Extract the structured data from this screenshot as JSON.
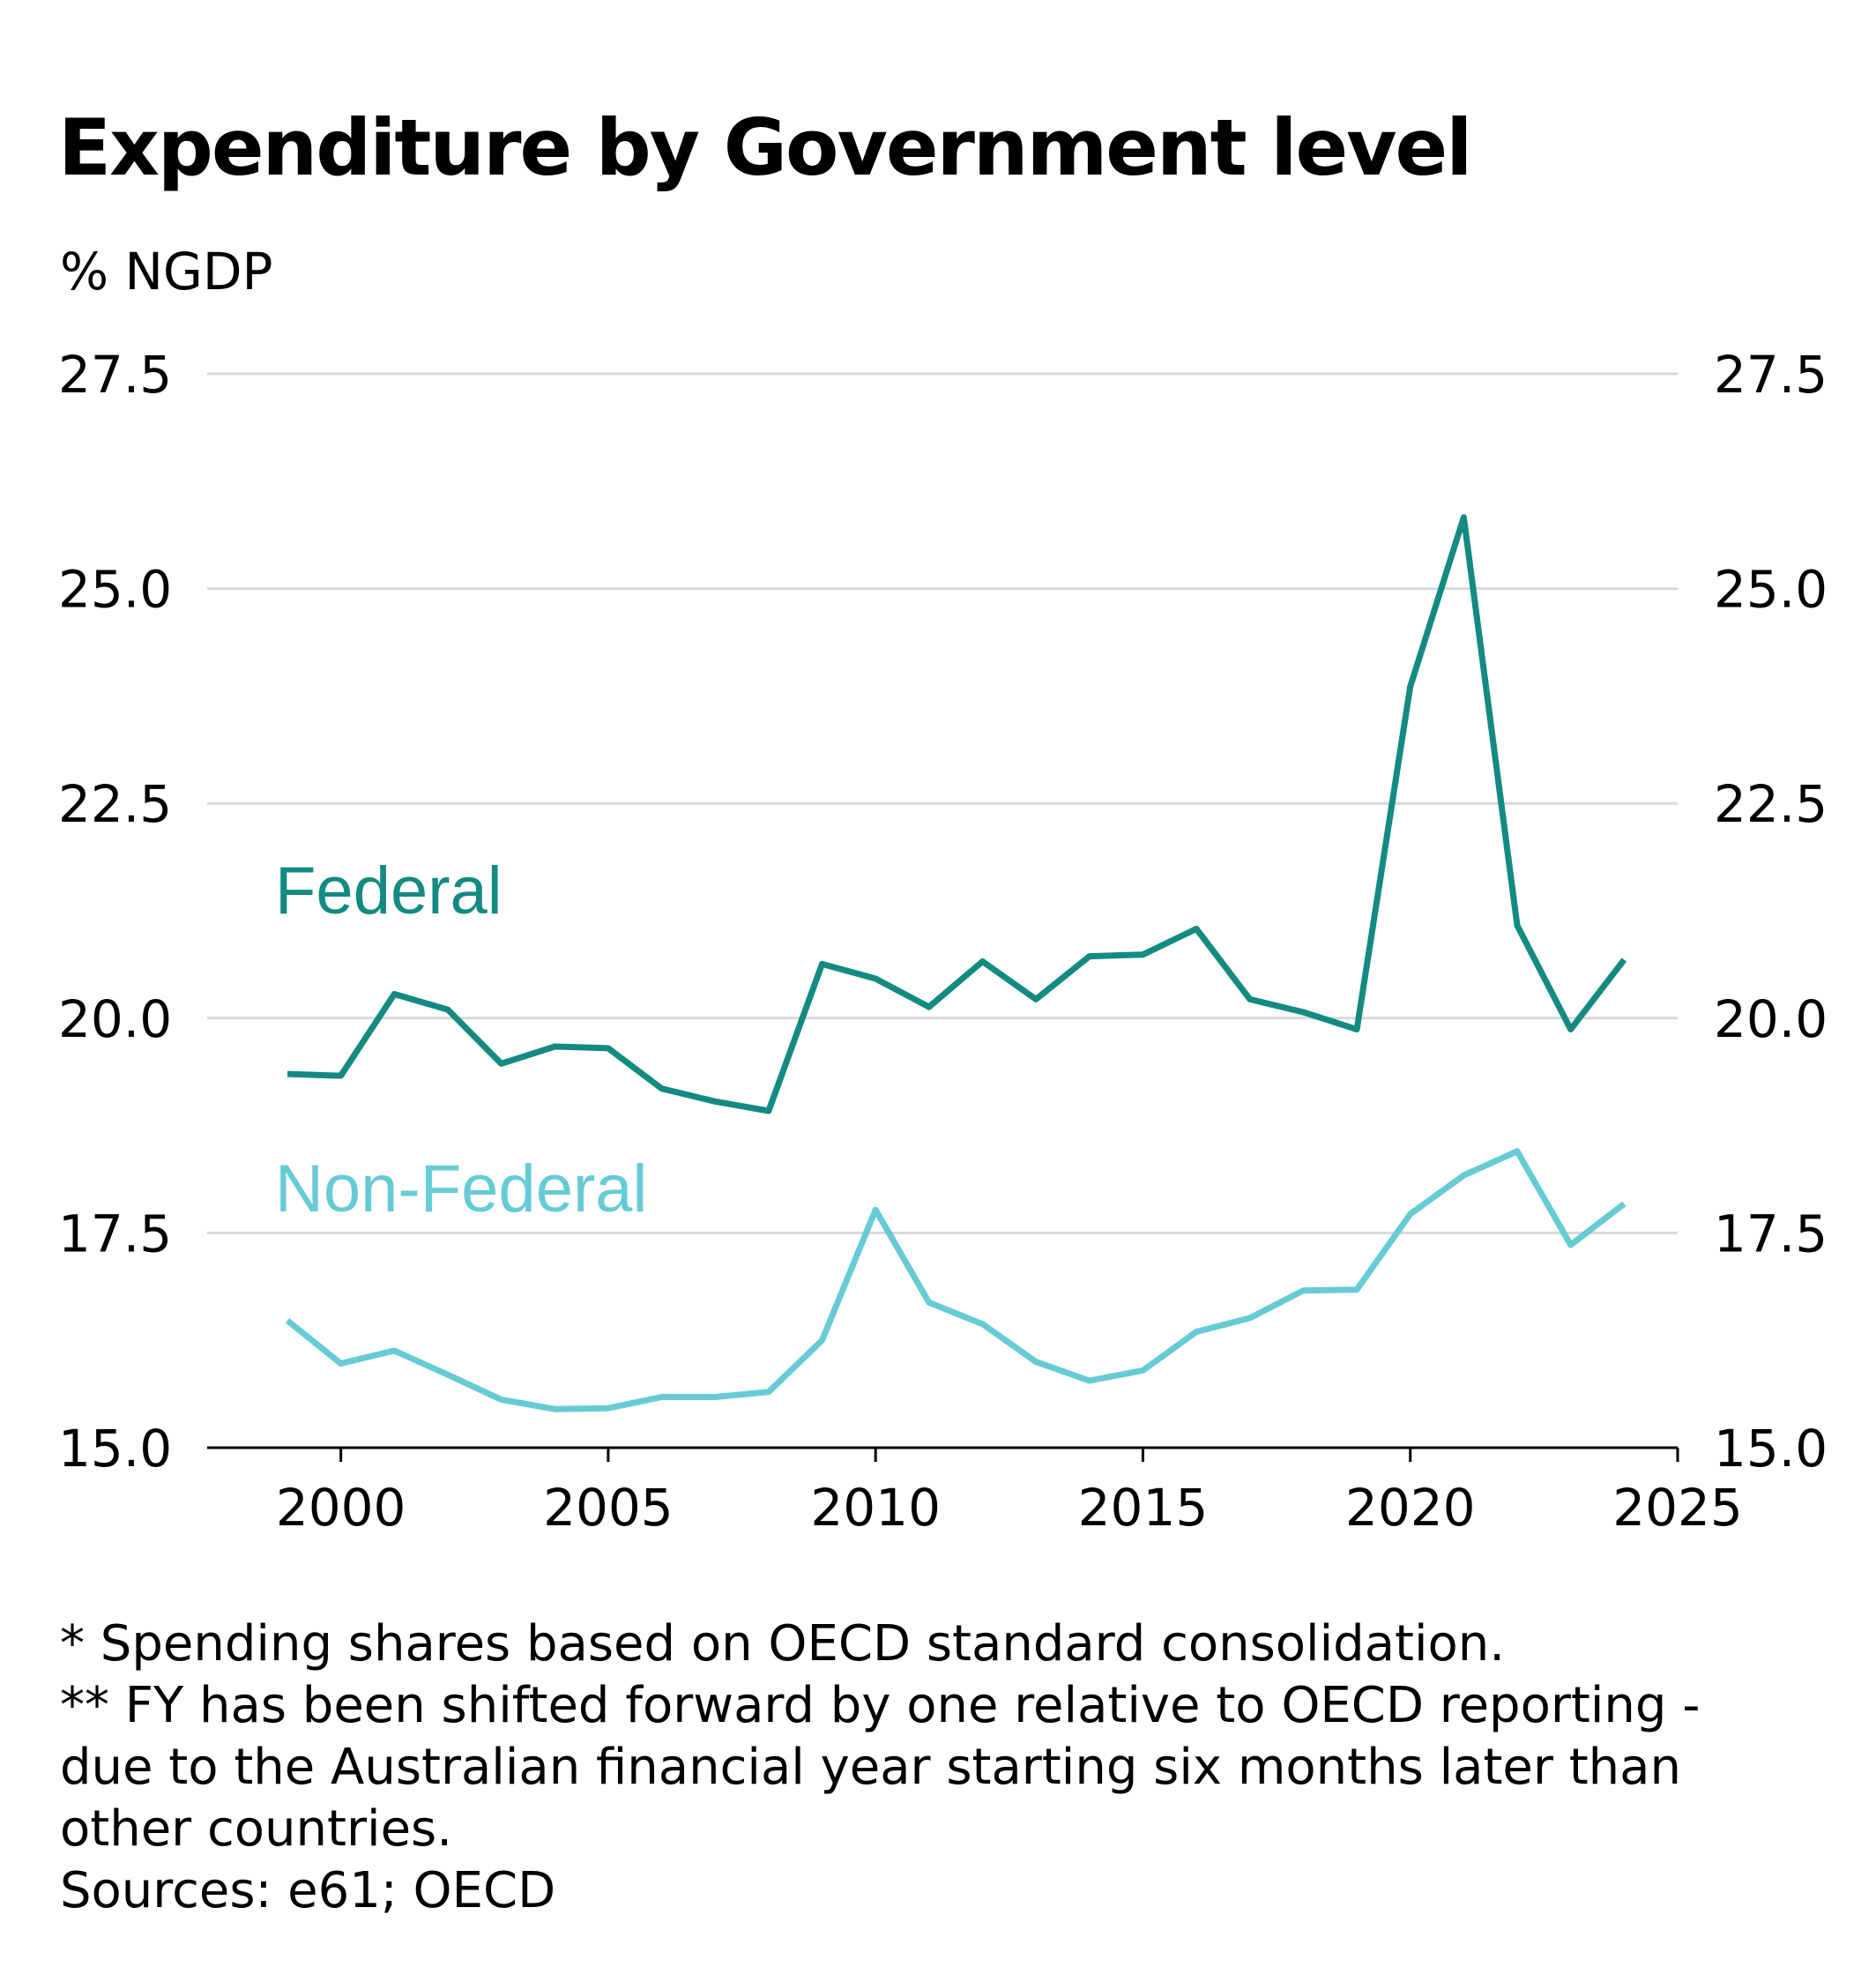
{
  "title": "Expenditure by Government level",
  "unit_label": "% NGDP",
  "notes": [
    "* Spending shares based on OECD standard consolidation.",
    "** FY has been shifted forward by one relative to OECD reporting -",
    "due to the Australian financial year starting six months later than",
    "other countries.",
    "Sources: e61; OECD"
  ],
  "colors": {
    "federal": "#138a82",
    "non_federal": "#67cbd6",
    "grid": "#d9d9d9",
    "axis": "#000000"
  },
  "chart_data": {
    "type": "line",
    "title": "Expenditure by Government level",
    "ylabel": "% NGDP",
    "xlabel": "",
    "xlim": [
      1997.5,
      2025
    ],
    "ylim": [
      15.0,
      27.5
    ],
    "x_ticks": [
      2000,
      2005,
      2010,
      2015,
      2020,
      2025
    ],
    "y_ticks": [
      15.0,
      17.5,
      20.0,
      22.5,
      25.0,
      27.5
    ],
    "y_tick_labels": [
      "15.0",
      "17.5",
      "20.0",
      "22.5",
      "25.0",
      "27.5"
    ],
    "y_axis_both_sides": true,
    "grid": true,
    "x": [
      1999,
      2000,
      2001,
      2002,
      2003,
      2004,
      2005,
      2006,
      2007,
      2008,
      2009,
      2010,
      2011,
      2012,
      2013,
      2014,
      2015,
      2016,
      2017,
      2018,
      2019,
      2020,
      2021,
      2022,
      2023,
      2024
    ],
    "series": [
      {
        "name": "Federal",
        "color": "#138a82",
        "values": [
          19.35,
          19.33,
          20.28,
          20.1,
          19.47,
          19.67,
          19.65,
          19.18,
          19.03,
          18.92,
          20.63,
          20.46,
          20.13,
          20.66,
          20.22,
          20.72,
          20.74,
          21.04,
          20.22,
          20.07,
          19.87,
          23.86,
          25.83,
          21.08,
          19.87,
          20.68
        ]
      },
      {
        "name": "Non-Federal",
        "color": "#67cbd6",
        "values": [
          16.48,
          15.98,
          16.13,
          15.85,
          15.56,
          15.45,
          15.46,
          15.59,
          15.59,
          15.65,
          16.25,
          17.77,
          16.69,
          16.44,
          16.0,
          15.78,
          15.9,
          16.35,
          16.51,
          16.83,
          16.84,
          17.72,
          18.17,
          18.45,
          17.36,
          17.84
        ]
      }
    ]
  }
}
